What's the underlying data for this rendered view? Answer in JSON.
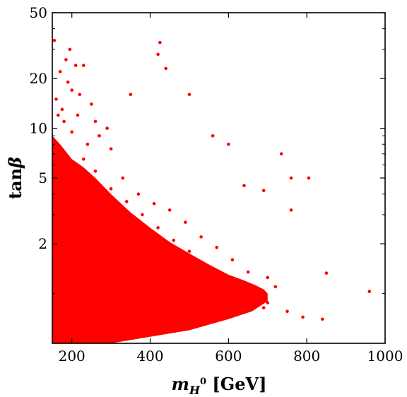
{
  "chart_data": {
    "type": "scatter",
    "title": "",
    "xlabel": {
      "base": "m",
      "sub": "H",
      "sup": "0",
      "unit": "[GeV]"
    },
    "ylabel": {
      "text": "tan",
      "symbol": "β"
    },
    "x_ticks": [
      200,
      400,
      600,
      800,
      1000
    ],
    "y_ticks": [
      2,
      5,
      10,
      20,
      50
    ],
    "xlim": [
      150,
      1000
    ],
    "ylim": [
      0.5,
      50
    ],
    "y_scale": "log",
    "grid": false,
    "marker_color": "#ff0000",
    "background": "#ffffff",
    "note": "",
    "series": [
      {
        "points": [
          [
            155,
            34
          ],
          [
            195,
            30
          ],
          [
            185,
            26
          ],
          [
            210,
            24
          ],
          [
            230,
            24
          ],
          [
            170,
            22
          ],
          [
            190,
            19
          ],
          [
            200,
            17
          ],
          [
            220,
            16
          ],
          [
            250,
            14
          ],
          [
            160,
            15
          ],
          [
            175,
            13
          ],
          [
            215,
            12
          ],
          [
            260,
            11
          ],
          [
            290,
            10
          ],
          [
            350,
            16
          ],
          [
            420,
            28
          ],
          [
            425,
            33
          ],
          [
            440,
            23
          ],
          [
            500,
            16
          ],
          [
            560,
            9
          ],
          [
            600,
            8
          ],
          [
            735,
            7
          ],
          [
            760,
            5
          ],
          [
            805,
            5
          ],
          [
            640,
            4.5
          ],
          [
            690,
            4.2
          ],
          [
            760,
            3.2
          ],
          [
            960,
            1.03
          ],
          [
            850,
            1.33
          ],
          [
            700,
            1.25
          ],
          [
            720,
            1.1
          ],
          [
            680,
            0.95
          ],
          [
            700,
            0.88
          ],
          [
            790,
            0.72
          ],
          [
            840,
            0.7
          ],
          [
            750,
            0.78
          ],
          [
            690,
            0.82
          ],
          [
            660,
            1.0
          ],
          [
            620,
            1.15
          ],
          [
            580,
            1.3
          ],
          [
            540,
            1.5
          ],
          [
            500,
            1.8
          ],
          [
            460,
            2.1
          ],
          [
            420,
            2.5
          ],
          [
            380,
            3.0
          ],
          [
            340,
            3.6
          ],
          [
            300,
            4.3
          ],
          [
            260,
            5.5
          ],
          [
            230,
            6.5
          ],
          [
            330,
            5.0
          ],
          [
            370,
            4.0
          ],
          [
            410,
            3.5
          ],
          [
            450,
            3.2
          ],
          [
            490,
            2.7
          ],
          [
            530,
            2.2
          ],
          [
            570,
            1.9
          ],
          [
            610,
            1.6
          ],
          [
            650,
            1.35
          ],
          [
            300,
            7.5
          ],
          [
            270,
            9.0
          ],
          [
            240,
            8.0
          ],
          [
            200,
            9.5
          ],
          [
            180,
            11.0
          ],
          [
            165,
            12.0
          ]
        ]
      }
    ]
  }
}
